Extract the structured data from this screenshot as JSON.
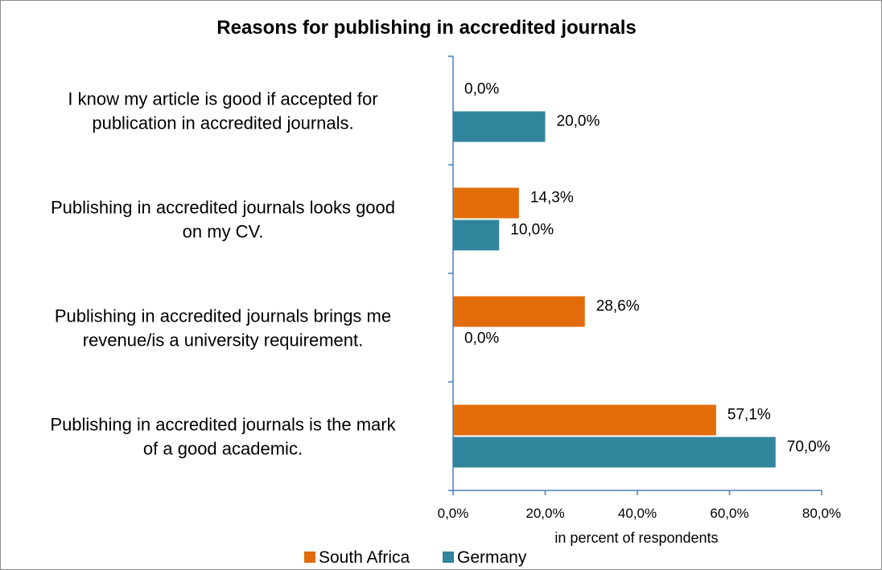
{
  "chart_data": {
    "type": "bar",
    "orientation": "horizontal",
    "title": "Reasons for publishing in accredited journals",
    "xlabel": "in percent of respondents",
    "ylabel": "",
    "xlim": [
      0,
      80
    ],
    "x_ticks": [
      "0,0%",
      "20,0%",
      "40,0%",
      "60,0%",
      "80,0%"
    ],
    "grid": false,
    "legend_position": "bottom",
    "categories": [
      [
        "I know my article is good if accepted for",
        "publication in accredited journals."
      ],
      [
        "Publishing in accredited journals looks good",
        "on my CV."
      ],
      [
        "Publishing in accredited journals brings me",
        "revenue/is a university requirement."
      ],
      [
        "Publishing in accredited journals is the mark",
        "of a good academic."
      ]
    ],
    "series": [
      {
        "name": "South Africa",
        "color": "#E36C0A",
        "values": [
          0.0,
          14.3,
          28.6,
          57.1
        ],
        "labels": [
          "0,0%",
          "14,3%",
          "28,6%",
          "57,1%"
        ]
      },
      {
        "name": "Germany",
        "color": "#31859C",
        "values": [
          20.0,
          10.0,
          0.0,
          70.0
        ],
        "labels": [
          "20,0%",
          "10,0%",
          "0,0%",
          "70,0%"
        ]
      }
    ]
  }
}
